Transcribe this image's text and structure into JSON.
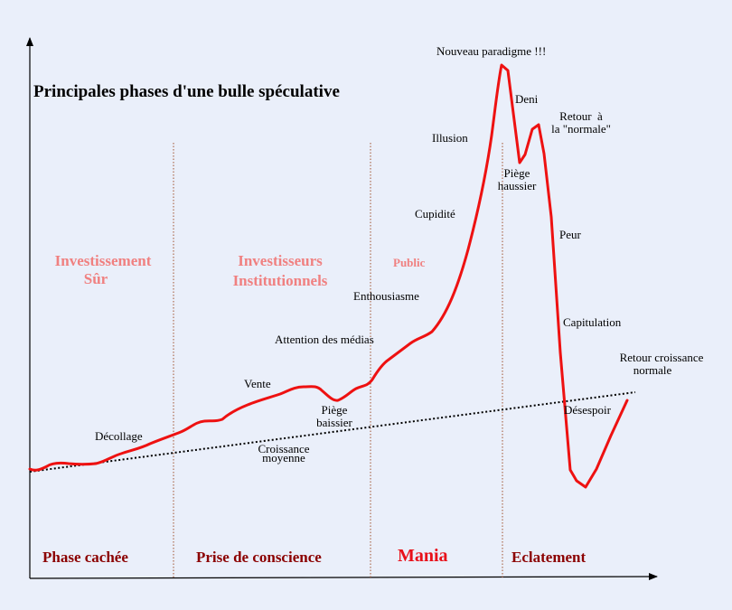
{
  "title": "Principales phases d'une bulle spéculative",
  "colors": {
    "background": "#eaeffa",
    "bubble_curve": "#ee1111",
    "actors": "#f08080",
    "phases": "#8b0000",
    "mania": "#e8101a",
    "dividers": "#a0522d"
  },
  "actors": {
    "safe": [
      "Investissement",
      "Sûr"
    ],
    "institutional": [
      "Investisseurs",
      "Institutionnels"
    ],
    "public": "Public"
  },
  "phases": [
    "Phase cachée",
    "Prise de conscience",
    "Mania",
    "Eclatement"
  ],
  "labels": {
    "decollage": "Décollage",
    "vente": "Vente",
    "piege_baissier": [
      "Piège",
      "baissier"
    ],
    "croissance": [
      "Croissance",
      "moyenne"
    ],
    "attention": "Attention des médias",
    "enthousiasme": "Enthousiasme",
    "cupidite": "Cupidité",
    "illusion": "Illusion",
    "nouveau_paradigme": "Nouveau paradigme !!!",
    "deni": "Deni",
    "piege_haussier": [
      "Piège",
      "haussier"
    ],
    "retour_normale": [
      "Retour  à",
      "la \"normale\""
    ],
    "peur": "Peur",
    "capitulation": "Capitulation",
    "desespoir": "Désespoir",
    "retour_croissance": [
      "Retour croissance",
      "normale"
    ]
  }
}
